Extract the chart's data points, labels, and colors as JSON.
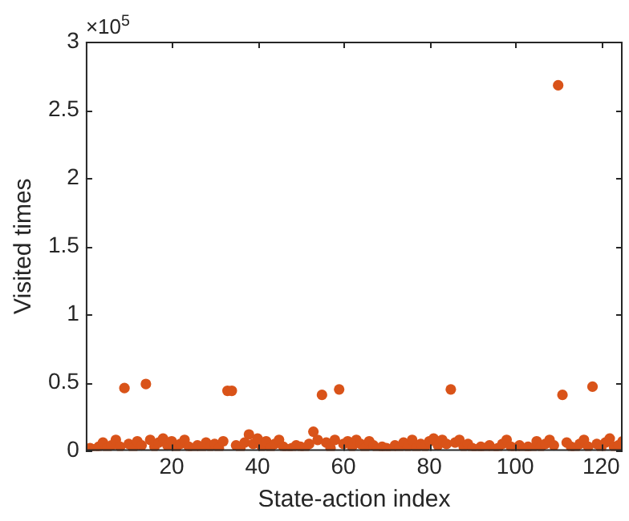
{
  "chart_data": {
    "type": "scatter",
    "xlabel": "State-action index",
    "ylabel": "Visited times",
    "annotations": [
      "×10$^{5}$"
    ],
    "x": [
      1,
      2,
      3,
      4,
      5,
      6,
      7,
      8,
      9,
      10,
      11,
      12,
      13,
      14,
      15,
      16,
      17,
      18,
      19,
      20,
      21,
      22,
      23,
      24,
      25,
      26,
      27,
      28,
      29,
      30,
      31,
      32,
      33,
      34,
      35,
      36,
      37,
      38,
      39,
      40,
      41,
      42,
      43,
      44,
      45,
      46,
      47,
      48,
      49,
      50,
      51,
      52,
      53,
      54,
      55,
      56,
      57,
      58,
      59,
      60,
      61,
      62,
      63,
      64,
      65,
      66,
      67,
      68,
      69,
      70,
      71,
      72,
      73,
      74,
      75,
      76,
      77,
      78,
      79,
      80,
      81,
      82,
      83,
      84,
      85,
      86,
      87,
      88,
      89,
      90,
      91,
      92,
      93,
      94,
      95,
      96,
      97,
      98,
      99,
      100,
      101,
      102,
      103,
      104,
      105,
      106,
      107,
      108,
      109,
      110,
      111,
      112,
      113,
      114,
      115,
      116,
      117,
      118,
      119,
      120,
      121,
      122,
      123,
      124,
      125
    ],
    "series": [
      {
        "color": "#d95319",
        "values": [
          0.02,
          0.01,
          0.03,
          0.06,
          0.02,
          0.04,
          0.08,
          0.03,
          0.46,
          0.05,
          0.02,
          0.07,
          0.04,
          0.49,
          0.08,
          0.03,
          0.06,
          0.09,
          0.04,
          0.07,
          0.02,
          0.05,
          0.08,
          0.03,
          0.01,
          0.04,
          0.02,
          0.06,
          0.03,
          0.05,
          0.02,
          0.07,
          0.44,
          0.44,
          0.04,
          0.02,
          0.06,
          0.12,
          0.05,
          0.09,
          0.03,
          0.07,
          0.02,
          0.05,
          0.08,
          0.03,
          0.01,
          0.02,
          0.04,
          0.03,
          0.02,
          0.05,
          0.14,
          0.08,
          0.41,
          0.06,
          0.02,
          0.08,
          0.45,
          0.05,
          0.07,
          0.03,
          0.08,
          0.05,
          0.02,
          0.07,
          0.04,
          0.01,
          0.03,
          0.02,
          0.01,
          0.04,
          0.02,
          0.06,
          0.03,
          0.08,
          0.02,
          0.05,
          0.03,
          0.07,
          0.09,
          0.04,
          0.08,
          0.05,
          0.45,
          0.06,
          0.08,
          0.03,
          0.05,
          0.02,
          0.01,
          0.03,
          0.02,
          0.04,
          0.01,
          0.02,
          0.05,
          0.08,
          0.03,
          0.02,
          0.04,
          0.01,
          0.03,
          0.02,
          0.07,
          0.03,
          0.05,
          0.08,
          0.04,
          2.68,
          0.41,
          0.06,
          0.03,
          0.02,
          0.05,
          0.08,
          0.03,
          0.47,
          0.05,
          0.02,
          0.06,
          0.09,
          0.03,
          0.04,
          0.07
        ]
      }
    ],
    "xlim": [
      0,
      125
    ],
    "xticks": [
      20,
      40,
      60,
      80,
      100,
      120
    ],
    "ylim": [
      0,
      3
    ],
    "yticks": [
      0,
      0.5,
      1,
      1.5,
      2,
      2.5,
      3
    ],
    "marker": "circle",
    "grid": false,
    "legend": false
  }
}
